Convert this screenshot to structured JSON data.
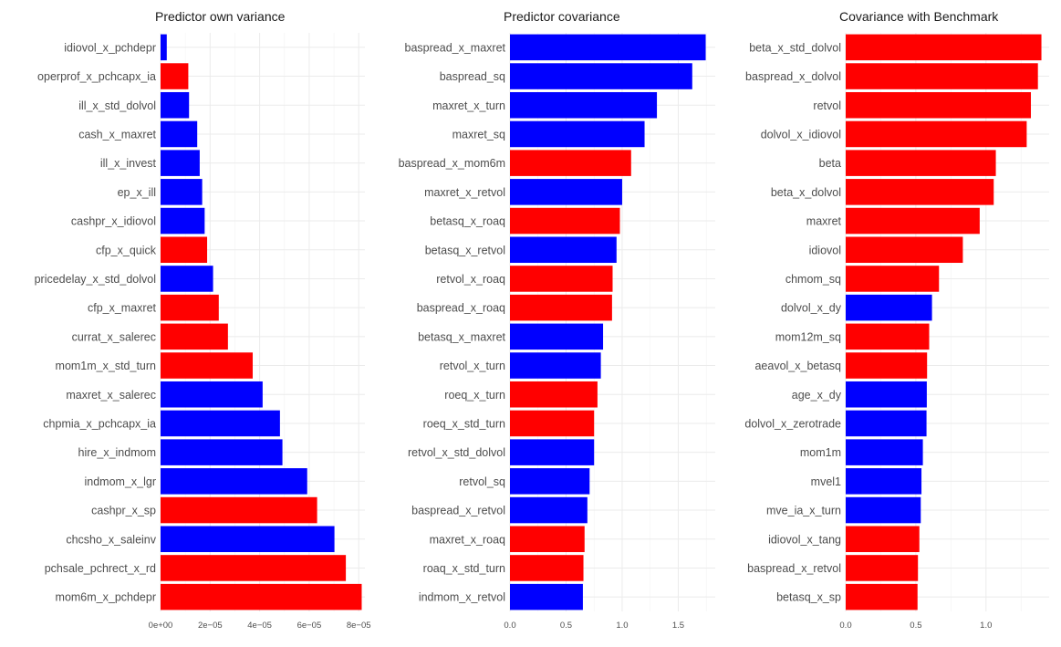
{
  "chart_data": [
    {
      "type": "bar",
      "orientation": "horizontal",
      "title": "Predictor own variance",
      "xlabel": "",
      "ylabel": "",
      "xlim": [
        0,
        8.25e-05
      ],
      "ticks": [
        0,
        2e-05,
        4e-05,
        6e-05,
        8e-05
      ],
      "tick_labels": [
        "0e+00",
        "2e−05",
        "4e−05",
        "6e−05",
        "8e−05"
      ],
      "categories": [
        "idiovol_x_pchdepr",
        "operprof_x_pchcapx_ia",
        "ill_x_std_dolvol",
        "cash_x_maxret",
        "ill_x_invest",
        "ep_x_ill",
        "cashpr_x_idiovol",
        "cfp_x_quick",
        "pricedelay_x_std_dolvol",
        "cfp_x_maxret",
        "currat_x_salerec",
        "mom1m_x_std_turn",
        "maxret_x_salerec",
        "chpmia_x_pchcapx_ia",
        "hire_x_indmom",
        "indmom_x_lgr",
        "cashpr_x_sp",
        "chcsho_x_saleinv",
        "pchsale_pchrect_x_rd",
        "mom6m_x_pchdepr"
      ],
      "values": [
        2.5e-06,
        1.12e-05,
        1.15e-05,
        1.48e-05,
        1.58e-05,
        1.68e-05,
        1.78e-05,
        1.88e-05,
        2.12e-05,
        2.35e-05,
        2.72e-05,
        3.72e-05,
        4.12e-05,
        4.82e-05,
        4.92e-05,
        5.92e-05,
        6.32e-05,
        7.02e-05,
        7.48e-05,
        8.12e-05
      ],
      "colors": [
        "blue",
        "red",
        "blue",
        "blue",
        "blue",
        "blue",
        "blue",
        "red",
        "blue",
        "red",
        "red",
        "red",
        "blue",
        "blue",
        "blue",
        "blue",
        "red",
        "blue",
        "red",
        "red"
      ]
    },
    {
      "type": "bar",
      "orientation": "horizontal",
      "title": "Predictor covariance",
      "xlabel": "",
      "ylabel": "",
      "xlim": [
        0,
        1.83
      ],
      "ticks": [
        0,
        0.5,
        1,
        1.5
      ],
      "tick_labels": [
        "0.0",
        "0.5",
        "1.0",
        "1.5"
      ],
      "categories": [
        "baspread_x_maxret",
        "baspread_sq",
        "maxret_x_turn",
        "maxret_sq",
        "baspread_x_mom6m",
        "maxret_x_retvol",
        "betasq_x_roaq",
        "betasq_x_retvol",
        "retvol_x_roaq",
        "baspread_x_roaq",
        "betasq_x_maxret",
        "retvol_x_turn",
        "roeq_x_turn",
        "roeq_x_std_turn",
        "retvol_x_std_dolvol",
        "retvol_sq",
        "baspread_x_retvol",
        "maxret_x_roaq",
        "roaq_x_std_turn",
        "indmom_x_retvol"
      ],
      "values": [
        1.745,
        1.625,
        1.31,
        1.2,
        1.08,
        1.0,
        0.98,
        0.95,
        0.915,
        0.91,
        0.83,
        0.81,
        0.78,
        0.75,
        0.75,
        0.71,
        0.69,
        0.665,
        0.655,
        0.65
      ],
      "colors": [
        "blue",
        "blue",
        "blue",
        "blue",
        "red",
        "blue",
        "red",
        "blue",
        "red",
        "red",
        "blue",
        "blue",
        "red",
        "red",
        "blue",
        "blue",
        "blue",
        "red",
        "red",
        "blue"
      ]
    },
    {
      "type": "bar",
      "orientation": "horizontal",
      "title": "Covariance with Benchmark",
      "xlabel": "",
      "ylabel": "",
      "xlim": [
        0,
        1.45
      ],
      "ticks": [
        0,
        0.5,
        1
      ],
      "tick_labels": [
        "0.0",
        "0.5",
        "1.0"
      ],
      "categories": [
        "beta_x_std_dolvol",
        "baspread_x_dolvol",
        "retvol",
        "dolvol_x_idiovol",
        "beta",
        "beta_x_dolvol",
        "maxret",
        "idiovol",
        "chmom_sq",
        "dolvol_x_dy",
        "mom12m_sq",
        "aeavol_x_betasq",
        "age_x_dy",
        "dolvol_x_zerotrade",
        "mom1m",
        "mvel1",
        "mve_ia_x_turn",
        "idiovol_x_tang",
        "baspread_x_retvol",
        "betasq_x_sp"
      ],
      "values": [
        1.395,
        1.37,
        1.32,
        1.29,
        1.07,
        1.055,
        0.955,
        0.835,
        0.665,
        0.615,
        0.595,
        0.58,
        0.578,
        0.576,
        0.55,
        0.54,
        0.535,
        0.525,
        0.515,
        0.512
      ],
      "colors": [
        "red",
        "red",
        "red",
        "red",
        "red",
        "red",
        "red",
        "red",
        "red",
        "blue",
        "red",
        "red",
        "blue",
        "blue",
        "blue",
        "blue",
        "blue",
        "red",
        "red",
        "red"
      ]
    }
  ],
  "palette": {
    "red": "#ff0000",
    "blue": "#0000ff",
    "grid": "#ebebeb"
  }
}
